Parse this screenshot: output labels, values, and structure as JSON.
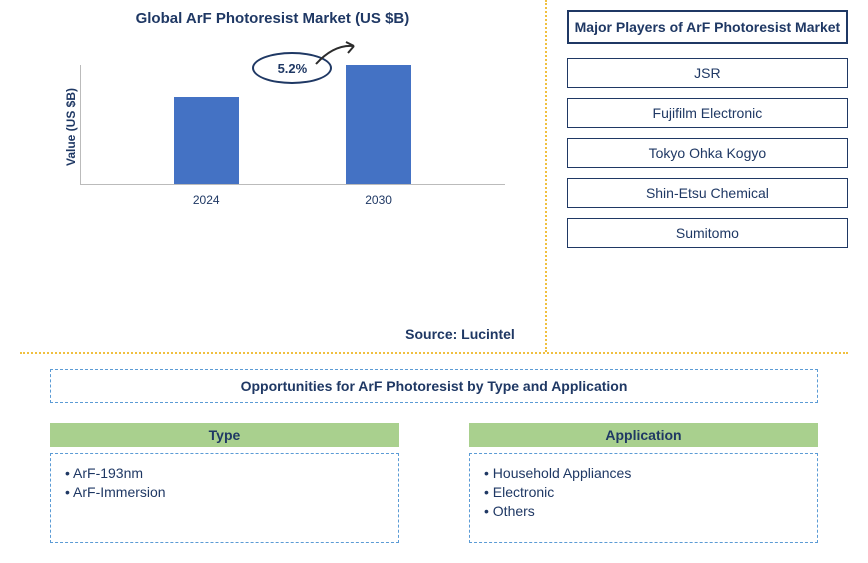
{
  "chart": {
    "title": "Global ArF Photoresist Market (US $B)",
    "type": "bar",
    "y_label": "Value (US $B)",
    "categories": [
      "2024",
      "2030"
    ],
    "values": [
      55,
      75
    ],
    "bar_color": "#4472c4",
    "axis_color": "#bbbbbb",
    "growth_label": "5.2%",
    "oval_border": "#1f3864",
    "arrow_color": "#2c2c2c",
    "bg": "#ffffff"
  },
  "source": "Source: Lucintel",
  "players": {
    "title": "Major Players of ArF Photoresist Market",
    "list": [
      "JSR",
      "Fujifilm Electronic",
      "Tokyo Ohka Kogyo",
      "Shin-Etsu Chemical",
      "Sumitomo"
    ],
    "title_border": "#1f3864",
    "box_border": "#1f3864"
  },
  "opportunities": {
    "title": "Opportunities for ArF Photoresist by Type and Application",
    "title_border": "#5b9bd5",
    "header_bg": "#a9d08e",
    "item_border": "#5b9bd5",
    "columns": [
      {
        "header": "Type",
        "items": [
          "ArF-193nm",
          "ArF-Immersion"
        ]
      },
      {
        "header": "Application",
        "items": [
          "Household Appliances",
          "Electronic",
          "Others"
        ]
      }
    ]
  },
  "divider_color": "#f0c040",
  "text_color": "#1f3864"
}
